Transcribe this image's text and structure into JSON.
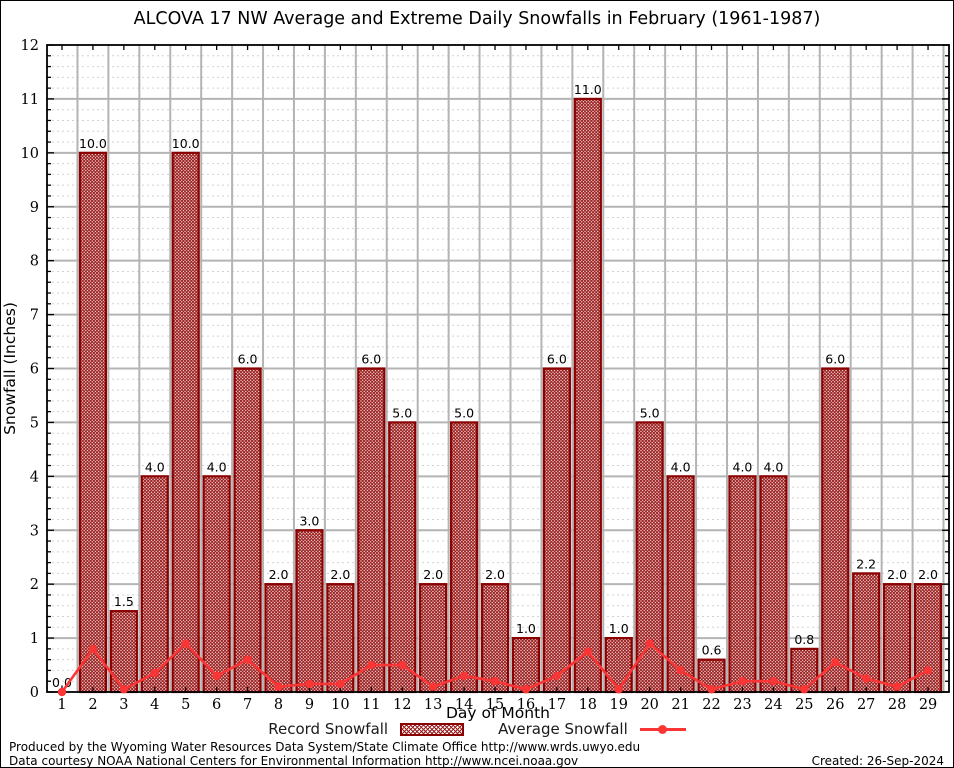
{
  "header": {
    "title": "ALCOVA 17 NW Average and Extreme Daily Snowfalls in February (1961-1987)"
  },
  "chart_data": {
    "type": "bar",
    "title": "ALCOVA 17 NW Average and Extreme Daily Snowfalls in February (1961-1987)",
    "xlabel": "Day of Month",
    "ylabel": "Snowfall (Inches)",
    "ylim": [
      0,
      12
    ],
    "y_major_step": 1,
    "y_minor_step": 0.2,
    "grid": true,
    "legend_position": "bottom",
    "categories": [
      1,
      2,
      3,
      4,
      5,
      6,
      7,
      8,
      9,
      10,
      11,
      12,
      13,
      14,
      15,
      16,
      17,
      18,
      19,
      20,
      21,
      22,
      23,
      24,
      25,
      26,
      27,
      28,
      29
    ],
    "series": [
      {
        "name": "Record Snowfall",
        "type": "bar",
        "values": [
          0.0,
          10.0,
          1.5,
          4.0,
          10.0,
          4.0,
          6.0,
          2.0,
          3.0,
          2.0,
          6.0,
          5.0,
          2.0,
          5.0,
          2.0,
          1.0,
          6.0,
          11.0,
          1.0,
          5.0,
          4.0,
          0.6,
          4.0,
          4.0,
          0.8,
          6.0,
          2.2,
          2.0,
          2.0
        ],
        "value_labels_shown": true
      },
      {
        "name": "Average Snowfall",
        "type": "line",
        "values": [
          0.0,
          0.8,
          0.05,
          0.35,
          0.9,
          0.3,
          0.6,
          0.1,
          0.15,
          0.15,
          0.5,
          0.5,
          0.1,
          0.3,
          0.2,
          0.05,
          0.3,
          0.75,
          0.05,
          0.9,
          0.4,
          0.05,
          0.2,
          0.2,
          0.05,
          0.55,
          0.25,
          0.1,
          0.4
        ]
      }
    ]
  },
  "legend": {
    "record_label": "Record Snowfall",
    "average_label": "Average Snowfall"
  },
  "footer": {
    "produced": "Produced by the Wyoming Water Resources Data System/State Climate Office http://www.wrds.uwyo.edu",
    "courtesy": "Data courtesy NOAA National Centers for Environmental Information http://www.ncei.noaa.gov",
    "created": "Created: 26-Sep-2024"
  },
  "colors": {
    "bar_hatch": "#9b1c1c",
    "bar_border": "#8B0000",
    "average_line": "#f93535",
    "grid_major": "#b4b4b4",
    "grid_minor": "#d2d2d2",
    "axis_frame": "#000000",
    "label_text": "#000000"
  }
}
